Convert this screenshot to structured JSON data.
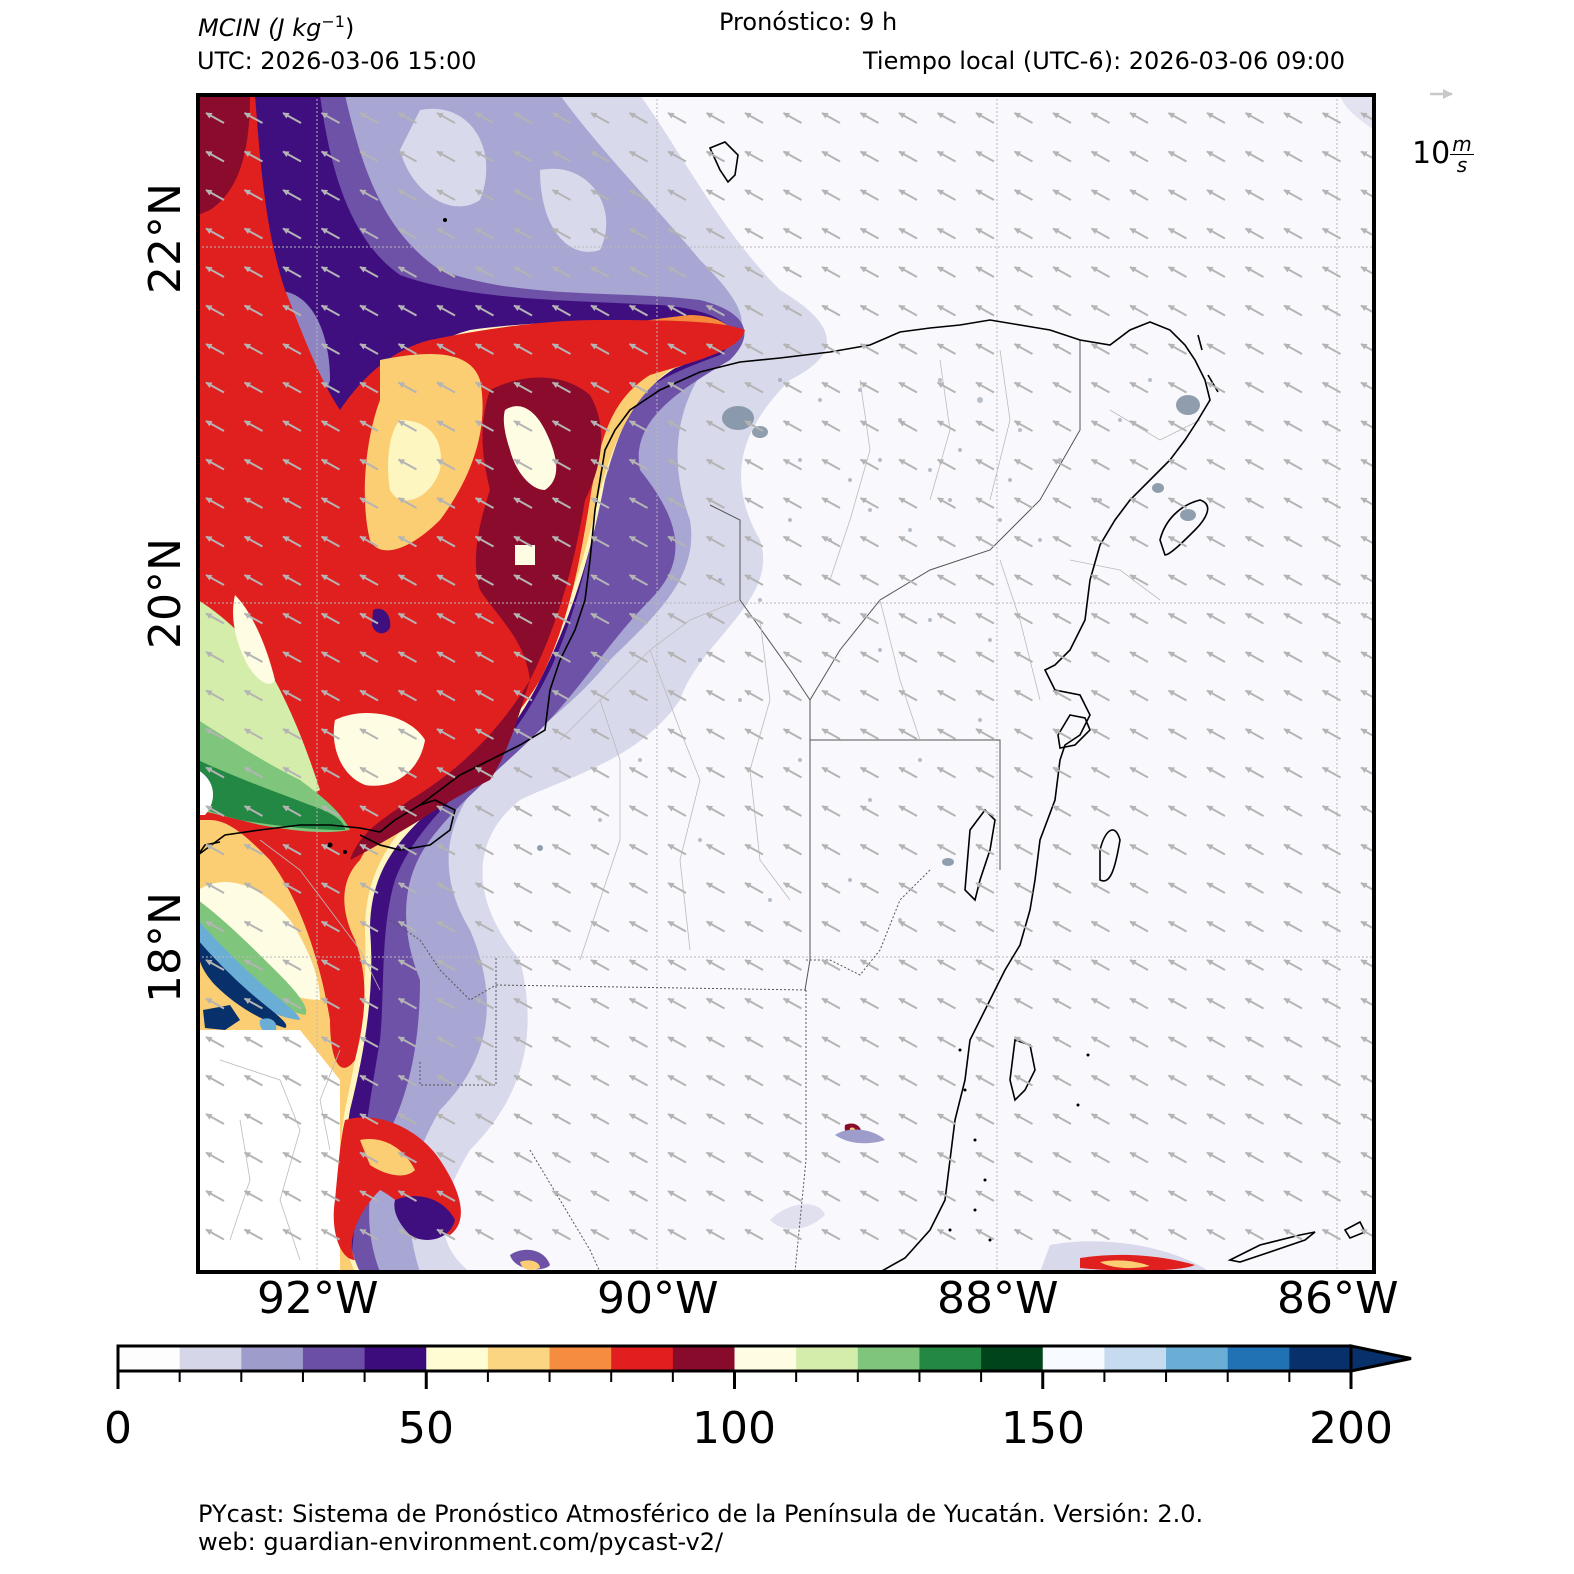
{
  "header": {
    "variable_label": "MCIN",
    "variable_units": "(J kg",
    "variable_units_exp": "−1",
    "variable_units_close": ")",
    "forecast": "Pronóstico: 9 h",
    "utc": "UTC:  2026-03-06 15:00",
    "local_time": "Tiempo local (UTC-6): 2026-03-06 09:00"
  },
  "map": {
    "lon_range": [
      -92.7,
      -85.8
    ],
    "lat_range": [
      15.9,
      22.5
    ],
    "lon_ticks": [
      "92°W",
      "90°W",
      "88°W",
      "86°W"
    ],
    "lat_ticks": [
      "22°N",
      "20°N",
      "18°N"
    ],
    "wind_direction": "northwest (easterly/southeasterly flow)",
    "vector_color": "#b4b4b4",
    "coastline_color": "#000000"
  },
  "wind_scale": {
    "value": "10",
    "unit_num": "m",
    "unit_den": "s"
  },
  "colorbar": {
    "ticks": [
      "0",
      "50",
      "100",
      "150",
      "200"
    ],
    "range": [
      0,
      200
    ],
    "step": 10,
    "extend": "max",
    "colors": [
      "#fdfdfe",
      "#d6d6e9",
      "#9e9ccb",
      "#6b4ea6",
      "#3c0c7c",
      "#fefcd3",
      "#fbd581",
      "#f68c3f",
      "#e31e1e",
      "#880b2b",
      "#fefce3",
      "#d5edaa",
      "#7fc57c",
      "#238843",
      "#00441b",
      "#f7fbff",
      "#c6dbef",
      "#6aaed6",
      "#2171b5",
      "#08306b"
    ]
  },
  "footer": {
    "line1": "PYcast: Sistema de Pronóstico Atmosférico de la Península de Yucatán. Versión: 2.0.",
    "line2": "web: guardian-environment.com/pycast-v2/"
  }
}
